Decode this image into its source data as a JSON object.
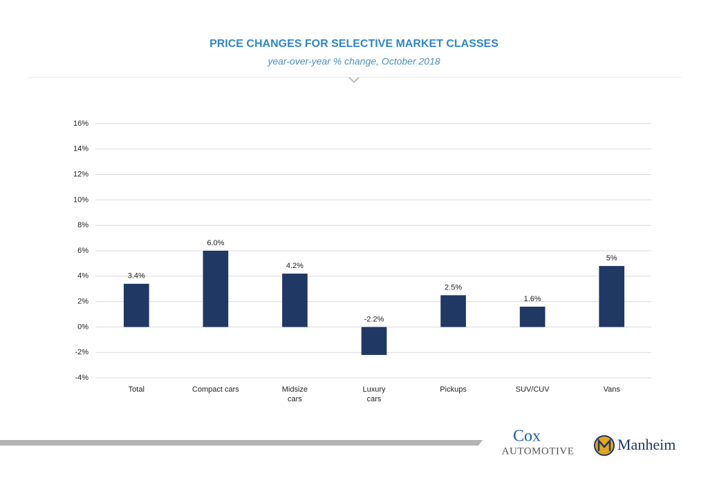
{
  "chart_data": {
    "type": "bar",
    "title": "PRICE CHANGES FOR SELECTIVE MARKET CLASSES",
    "subtitle": "year-over-year % change, October 2018",
    "categories": [
      "Total",
      "Compact cars",
      "Midsize\ncars",
      "Luxury\ncars",
      "Pickups",
      "SUV/CUV",
      "Vans"
    ],
    "values": [
      3.4,
      6.0,
      4.2,
      -2.2,
      2.5,
      1.6,
      4.8
    ],
    "value_labels": [
      "3.4%",
      "6.0%",
      "4.2%",
      "-2.2%",
      "2.5%",
      "1.6%",
      "5%"
    ],
    "color": "#1f3864",
    "ylim": [
      -4,
      16
    ],
    "yticks": [
      {
        "value": -4,
        "label": "-4%"
      },
      {
        "value": -2,
        "label": "-2%"
      },
      {
        "value": 0,
        "label": "0%"
      },
      {
        "value": 2,
        "label": "2%"
      },
      {
        "value": 4,
        "label": "4%"
      },
      {
        "value": 6,
        "label": "6%"
      },
      {
        "value": 8,
        "label": "8%"
      },
      {
        "value": 10,
        "label": "10%"
      },
      {
        "value": 12,
        "label": "12%"
      },
      {
        "value": 14,
        "label": "14%"
      },
      {
        "value": 16,
        "label": "16%"
      }
    ],
    "grid": true
  },
  "footer": {
    "brand1_line1": "Cox",
    "brand1_line2": "AUTOMOTIVE",
    "brand2": "Manheim"
  }
}
